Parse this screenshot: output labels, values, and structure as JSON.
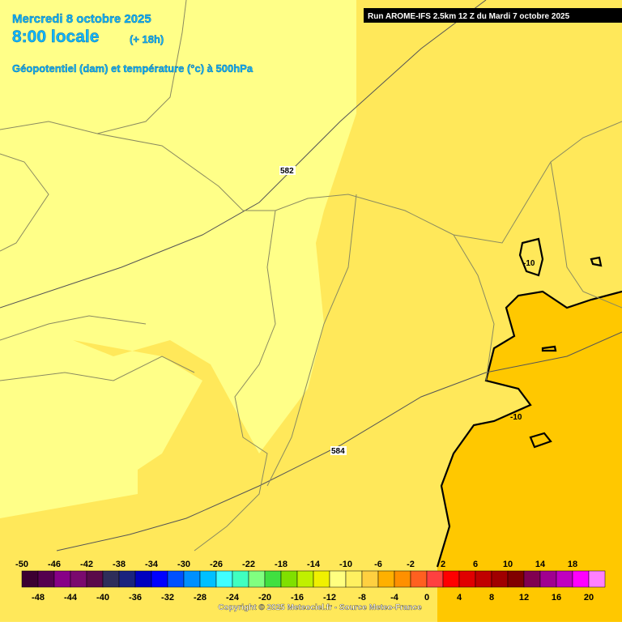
{
  "header": {
    "date": "Mercredi 8 octobre 2025",
    "time": "8:00 locale",
    "lead": "(+ 18h)",
    "subtitle": "Géopotentiel (dam) et température (°c) à 500hPa",
    "run": "Run AROME-IFS 2.5km 12 Z du Mardi 7 octobre 2025"
  },
  "map": {
    "labels": [
      "582",
      "-10",
      "-10",
      "584"
    ]
  },
  "colorbar": {
    "labels": [
      -50,
      -48,
      -46,
      -44,
      -42,
      -40,
      -38,
      -36,
      -34,
      -32,
      -30,
      -28,
      -26,
      -24,
      -22,
      -20,
      -18,
      -16,
      -14,
      -12,
      -10,
      -8,
      -6,
      -4,
      -2,
      0,
      2,
      4,
      6,
      8,
      10,
      12,
      14,
      16,
      18,
      20
    ],
    "colors": [
      "#3c0032",
      "#55004f",
      "#870087",
      "#7a0a6e",
      "#5a0a4a",
      "#2e2e5a",
      "#1a237e",
      "#0000c0",
      "#0000ff",
      "#0050ff",
      "#0090ff",
      "#00c0ff",
      "#40ffff",
      "#40ffc0",
      "#80ff80",
      "#40e040",
      "#80e000",
      "#c0f000",
      "#f0f000",
      "#ffff80",
      "#fff060",
      "#ffd040",
      "#ffb000",
      "#ff9000",
      "#ff6020",
      "#ff4040",
      "#ff0000",
      "#e00000",
      "#c00000",
      "#a00000",
      "#800000",
      "#800050",
      "#a00090",
      "#c000c0",
      "#ff00ff",
      "#ff80ff"
    ]
  },
  "footer": {
    "copyright": "Copyright © 2025 Meteociel.fr - Source Meteo-France"
  }
}
